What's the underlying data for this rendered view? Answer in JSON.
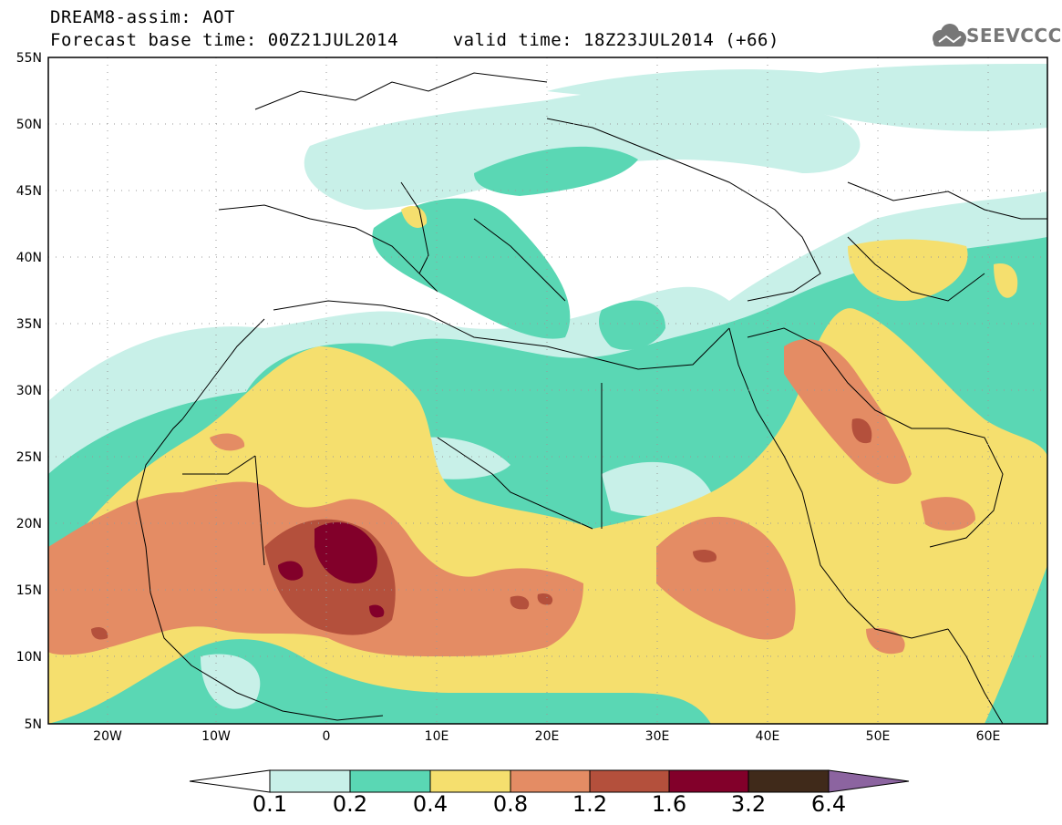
{
  "title": {
    "line1": "DREAM8-assim: AOT",
    "line2": "Forecast base time: 00Z21JUL2014     valid time: 18Z23JUL2014 (+66)"
  },
  "logo": {
    "text": "SEEVCCC",
    "icon": "cloud-icon"
  },
  "map": {
    "lon_range": [
      -25,
      65
    ],
    "lat_range": [
      5,
      55
    ],
    "gridlines": "dotted",
    "lat_labels": [
      "55N",
      "50N",
      "45N",
      "40N",
      "35N",
      "30N",
      "25N",
      "20N",
      "15N",
      "10N",
      "5N"
    ],
    "lon_labels": [
      "20W",
      "10W",
      "0",
      "10E",
      "20E",
      "30E",
      "40E",
      "50E",
      "60E"
    ]
  },
  "colorbar": {
    "levels": [
      "0.1",
      "0.2",
      "0.4",
      "0.8",
      "1.2",
      "1.6",
      "3.2",
      "6.4"
    ],
    "colors": [
      "#ffffff",
      "#c8f0e8",
      "#5ad7b4",
      "#f5df6e",
      "#e48c64",
      "#b4503c",
      "#82002a",
      "#402a1a",
      "#8c64a0"
    ]
  }
}
